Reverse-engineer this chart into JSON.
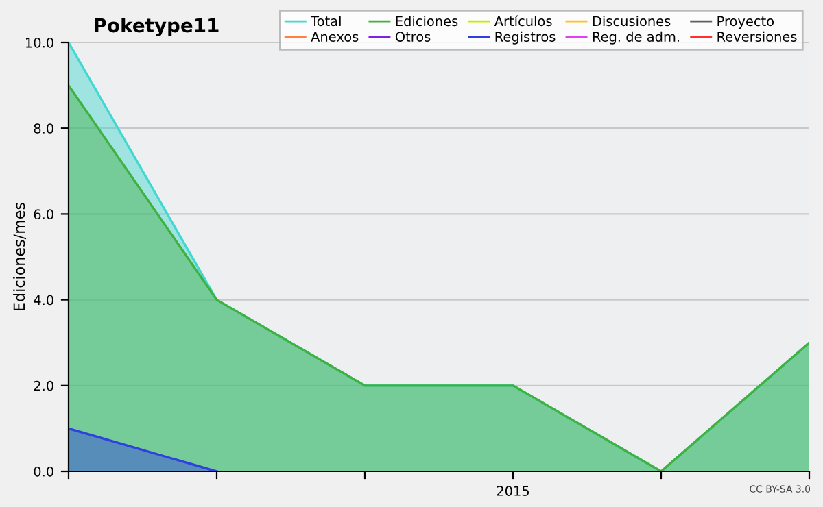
{
  "chart_data": {
    "type": "area",
    "title": "Poketype11",
    "ylabel": "Ediciones/mes",
    "categories": [
      null,
      null,
      null,
      "2015",
      null,
      null
    ],
    "series": [
      {
        "name": "Total",
        "color": "#40d8d0",
        "values": [
          10,
          4,
          2,
          2,
          0,
          3
        ]
      },
      {
        "name": "Anexos",
        "color": "#ff8040",
        "values": [
          null,
          null,
          null,
          null,
          null,
          null
        ]
      },
      {
        "name": "Ediciones",
        "color": "#40b040",
        "values": [
          9,
          4,
          2,
          2,
          0,
          3
        ]
      },
      {
        "name": "Otros",
        "color": "#8020e0",
        "values": [
          null,
          null,
          null,
          null,
          null,
          null
        ]
      },
      {
        "name": "Artículos",
        "color": "#c0f000",
        "values": [
          null,
          null,
          null,
          null,
          null,
          null
        ]
      },
      {
        "name": "Registros",
        "color": "#3040e0",
        "values": [
          1,
          0,
          null,
          null,
          null,
          null
        ]
      },
      {
        "name": "Discusiones",
        "color": "#ffc020",
        "values": [
          null,
          null,
          null,
          null,
          null,
          null
        ]
      },
      {
        "name": "Reg. de adm.",
        "color": "#e040f0",
        "values": [
          null,
          null,
          null,
          null,
          null,
          null
        ]
      },
      {
        "name": "Proyecto",
        "color": "#606060",
        "values": [
          null,
          null,
          null,
          null,
          null,
          null
        ]
      },
      {
        "name": "Reversiones",
        "color": "#ff3030",
        "values": [
          null,
          null,
          null,
          null,
          null,
          null
        ]
      }
    ],
    "ylim": [
      0,
      10
    ],
    "yticks": [
      {
        "value": 0,
        "label": "0.0"
      },
      {
        "value": 2,
        "label": "2.0"
      },
      {
        "value": 4,
        "label": "4.0"
      },
      {
        "value": 6,
        "label": "6.0"
      },
      {
        "value": 8,
        "label": "8.0"
      },
      {
        "value": 10,
        "label": "10.0"
      }
    ],
    "grid": "y",
    "legend": "top right",
    "annotations": [
      "CC BY-SA 3.0"
    ]
  }
}
